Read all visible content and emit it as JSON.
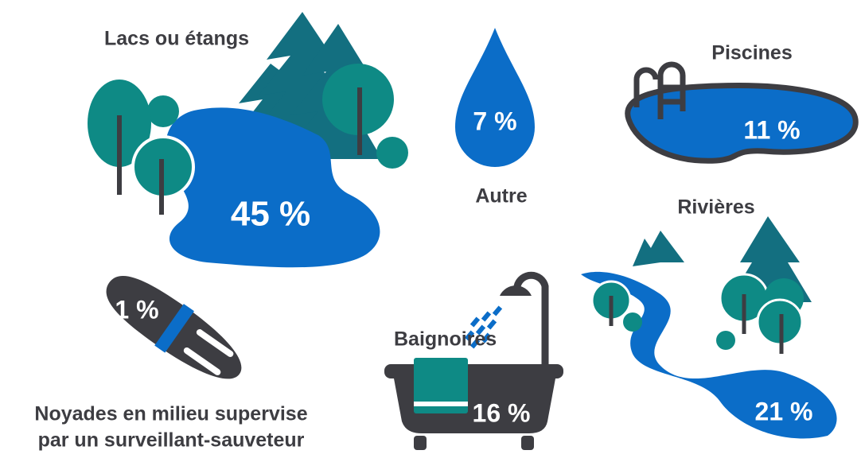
{
  "items": [
    {
      "label": "Lacs ou étangs",
      "value": "45 %"
    },
    {
      "label": "Autre",
      "value": "7 %"
    },
    {
      "label": "Piscines",
      "value": "11 %"
    },
    {
      "label": "Rivières",
      "value": "21 %"
    },
    {
      "label": "Baignoires",
      "value": "16 %"
    },
    {
      "label_lines": [
        "Noyades en milieu supervise",
        "par un surveillant-sauveteur"
      ],
      "value": "1 %"
    }
  ]
}
